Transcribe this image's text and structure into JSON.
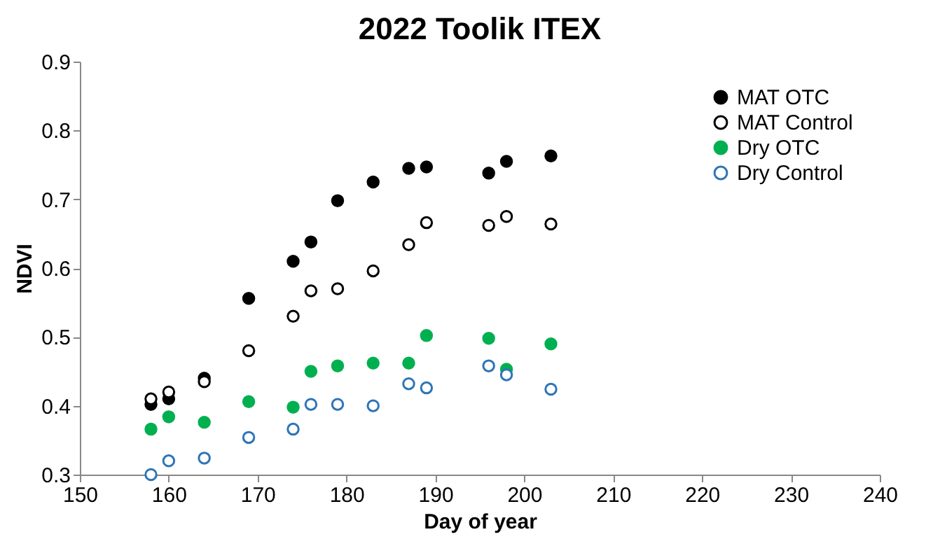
{
  "chart_data": {
    "type": "scatter",
    "title": "2022 Toolik ITEX",
    "xlabel": "Day of year",
    "ylabel": "NDVI",
    "x": [
      158,
      160,
      164,
      169,
      174,
      176,
      179,
      183,
      187,
      189,
      196,
      198,
      203
    ],
    "series": [
      {
        "name": "MAT OTC",
        "color": "#000000",
        "marker": "circle",
        "values": [
          0.402,
          0.41,
          0.44,
          0.556,
          0.61,
          0.638,
          0.698,
          0.725,
          0.745,
          0.747,
          0.738,
          0.755,
          0.763
        ]
      },
      {
        "name": "MAT Control",
        "color": "#000000",
        "marker": "open circle",
        "values": [
          0.41,
          0.42,
          0.435,
          0.48,
          0.53,
          0.567,
          0.57,
          0.596,
          0.634,
          0.666,
          0.662,
          0.675,
          0.664
        ]
      },
      {
        "name": "Dry OTC",
        "color": "#00b050",
        "marker": "circle",
        "values": [
          0.366,
          0.384,
          0.376,
          0.406,
          0.398,
          0.45,
          0.458,
          0.462,
          0.462,
          0.502,
          0.498,
          0.453,
          0.49
        ]
      },
      {
        "name": "Dry Control",
        "color": "#2e75b6",
        "marker": "open circle",
        "values": [
          0.3,
          0.32,
          0.324,
          0.354,
          0.366,
          0.402,
          0.402,
          0.4,
          0.432,
          0.426,
          0.458,
          0.445,
          0.424
        ]
      }
    ],
    "xlim": [
      150,
      240
    ],
    "xticks": [
      150,
      160,
      170,
      180,
      190,
      200,
      210,
      220,
      230,
      240
    ],
    "ylim": [
      0.3,
      0.9
    ],
    "yticks": [
      0.3,
      0.4,
      0.5,
      0.6,
      0.7,
      0.8,
      0.9
    ],
    "grid": false,
    "legend": "top right"
  }
}
